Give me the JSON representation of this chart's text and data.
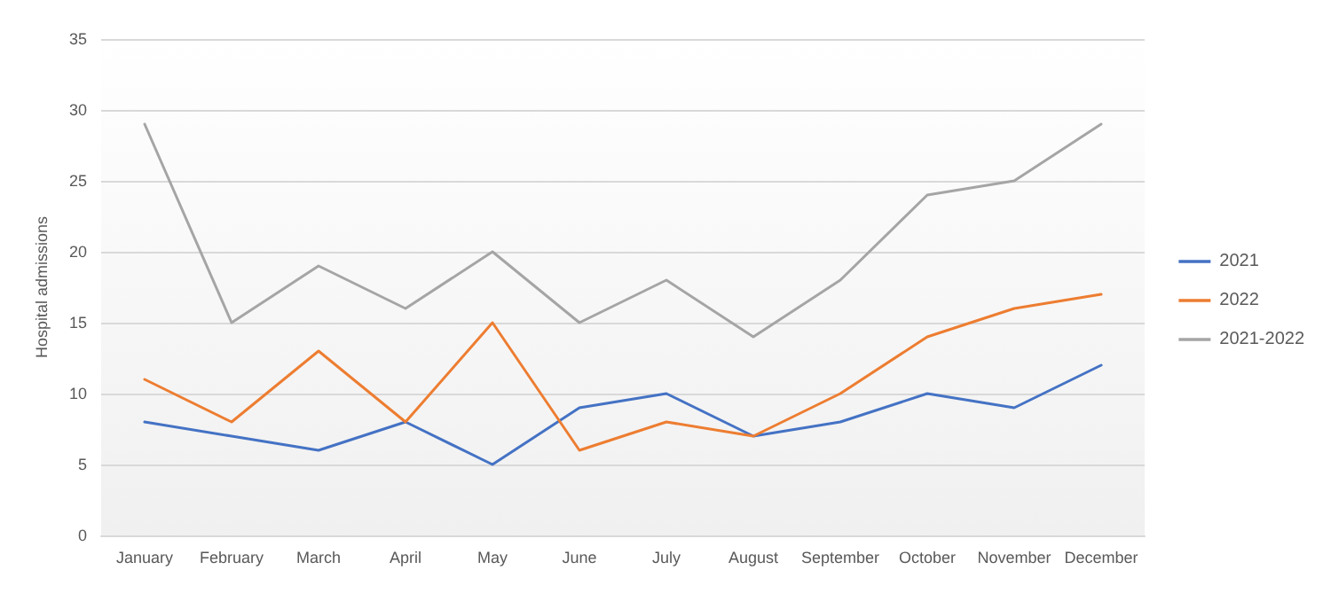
{
  "chart_data": {
    "type": "line",
    "ylabel": "Hospital admissions",
    "categories": [
      "January",
      "February",
      "March",
      "April",
      "May",
      "June",
      "July",
      "August",
      "September",
      "October",
      "November",
      "December"
    ],
    "series": [
      {
        "name": "2021",
        "color": "#4472c4",
        "values": [
          8,
          7,
          6,
          8,
          5,
          9,
          10,
          7,
          8,
          10,
          9,
          12
        ]
      },
      {
        "name": "2022",
        "color": "#ed7d31",
        "values": [
          11,
          8,
          13,
          8,
          15,
          6,
          8,
          7,
          10,
          14,
          16,
          17
        ]
      },
      {
        "name": "2021-2022",
        "color": "#a5a5a5",
        "values": [
          29,
          15,
          19,
          16,
          20,
          15,
          18,
          14,
          18,
          24,
          25,
          29
        ]
      }
    ],
    "ylim": [
      0,
      35
    ],
    "yticks": [
      0,
      5,
      10,
      15,
      20,
      25,
      30,
      35
    ],
    "grid": "y",
    "legend": "right",
    "marker": "none",
    "line_style": "solid"
  }
}
